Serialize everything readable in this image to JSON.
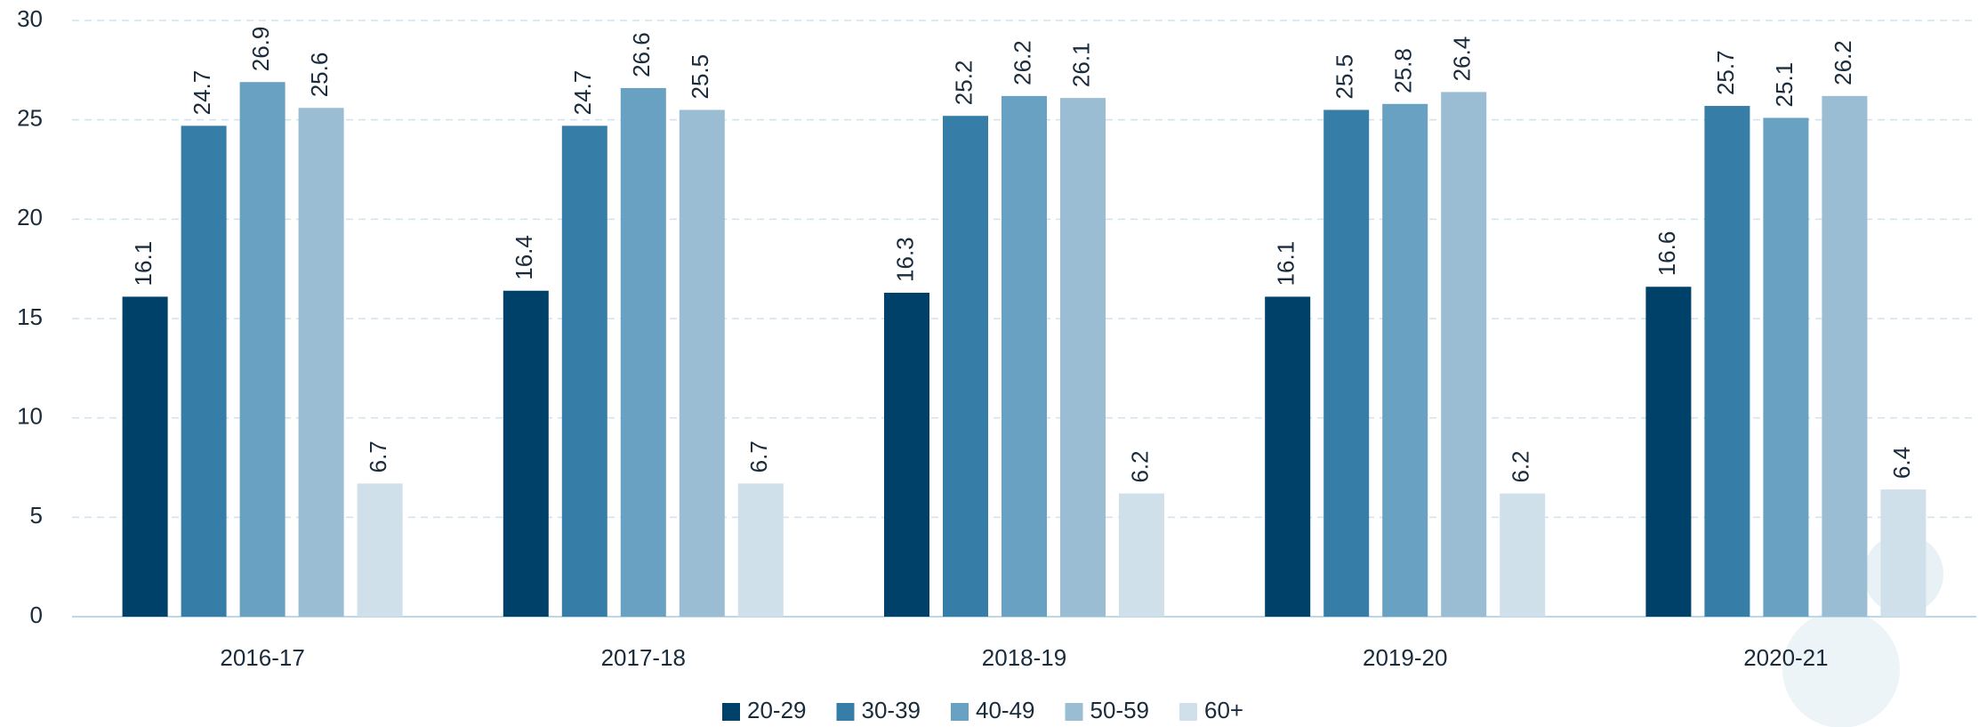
{
  "chart_data": {
    "type": "bar",
    "categories": [
      "2016-17",
      "2017-18",
      "2018-19",
      "2019-20",
      "2020-21"
    ],
    "series": [
      {
        "name": "20-29",
        "color": "#00416a",
        "values": [
          16.1,
          16.4,
          16.3,
          16.1,
          16.6
        ]
      },
      {
        "name": "30-39",
        "color": "#367ea8",
        "values": [
          24.7,
          24.7,
          25.2,
          25.5,
          25.7
        ]
      },
      {
        "name": "40-49",
        "color": "#68a1c1",
        "values": [
          26.9,
          26.6,
          26.2,
          25.8,
          25.1
        ]
      },
      {
        "name": "50-59",
        "color": "#9bbdd3",
        "values": [
          25.6,
          25.5,
          26.1,
          26.4,
          26.2
        ]
      },
      {
        "name": "60+",
        "color": "#cfe0ea",
        "values": [
          6.7,
          6.7,
          6.2,
          6.2,
          6.4
        ]
      }
    ],
    "ylim": [
      0,
      30
    ],
    "yticks": [
      0,
      5,
      10,
      15,
      20,
      25,
      30
    ],
    "grid": true,
    "legend": "bottom"
  }
}
